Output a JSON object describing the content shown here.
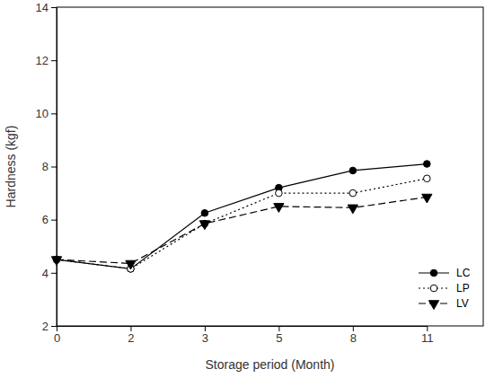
{
  "chart_data": {
    "type": "line",
    "x_label": "Storage period (Month)",
    "y_label": "Hardness (kgf)",
    "categories": [
      "0",
      "2",
      "3",
      "5",
      "8",
      "11"
    ],
    "series": [
      {
        "name": "LC",
        "color": "#000000",
        "marker": "circle",
        "line_style": "solid",
        "values": [
          4.5,
          4.15,
          6.25,
          7.2,
          7.85,
          8.1
        ]
      },
      {
        "name": "LP",
        "color": "#000000",
        "marker": "circle-open",
        "line_style": "dotted",
        "values": [
          4.5,
          4.15,
          5.85,
          7.0,
          7.0,
          7.55
        ]
      },
      {
        "name": "LV",
        "color": "#000000",
        "marker": "triangle-down",
        "line_style": "dashed",
        "values": [
          4.5,
          4.35,
          5.85,
          6.5,
          6.45,
          6.85
        ]
      }
    ],
    "ylim": [
      2,
      14
    ],
    "yticks": [
      2,
      4,
      6,
      8,
      10,
      12,
      14
    ],
    "legend": "lower-right"
  }
}
